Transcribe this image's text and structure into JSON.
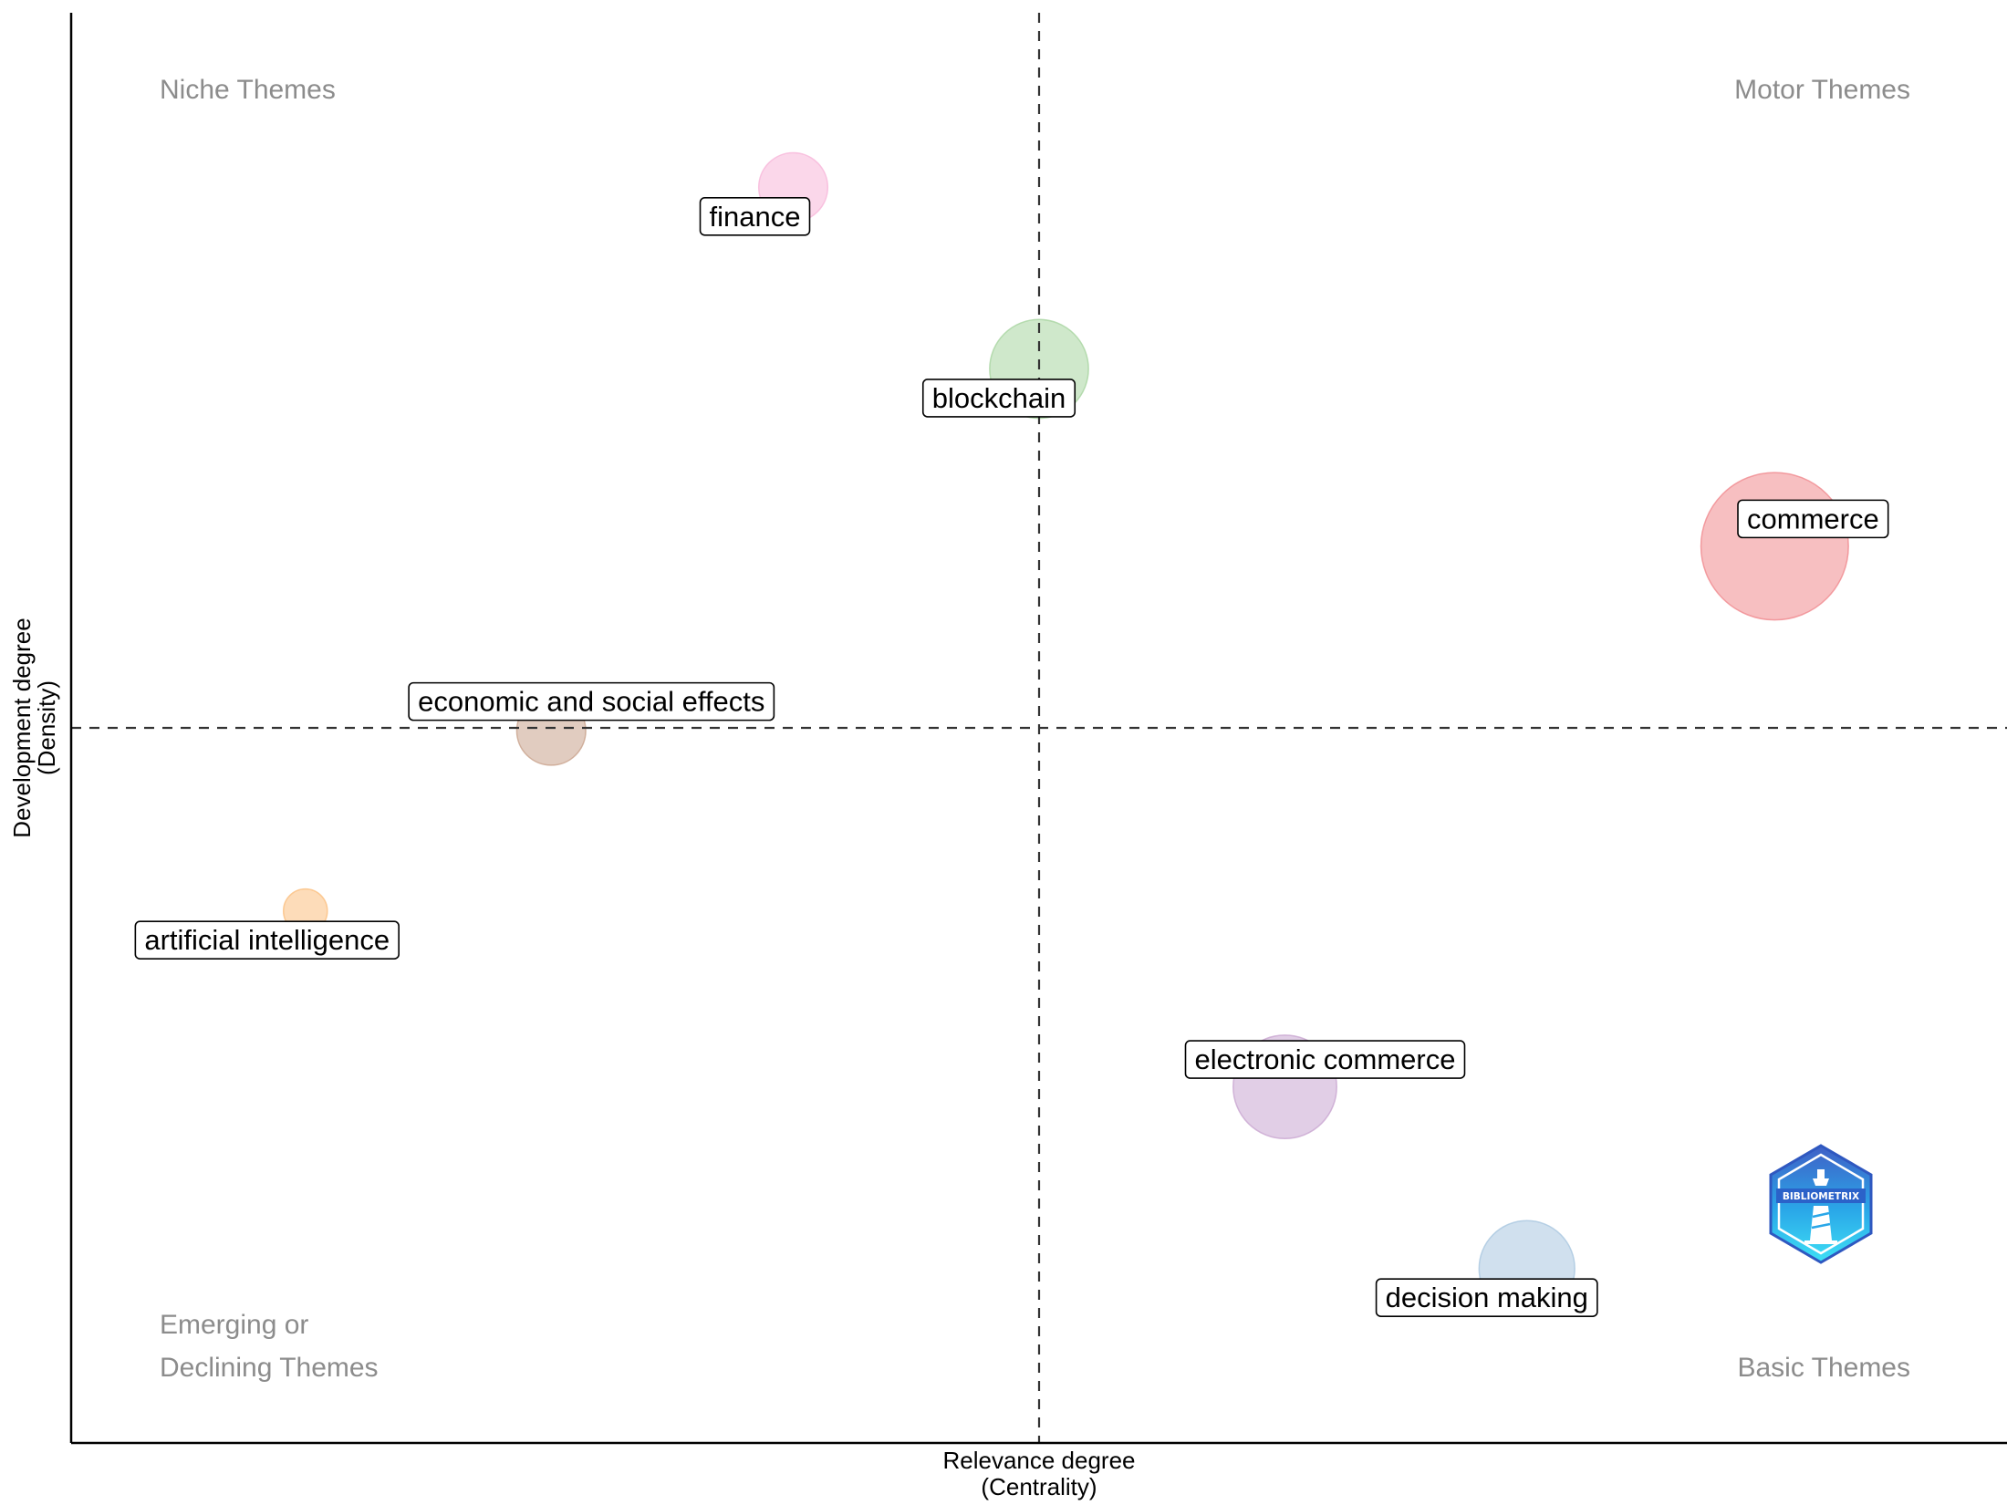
{
  "chart_data": {
    "type": "scatter",
    "title": "",
    "xlabel": "Relevance degree",
    "xlabel_sub": "(Centrality)",
    "ylabel": "Development degree",
    "ylabel_sub": "(Density)",
    "xlim": [
      0,
      1
    ],
    "ylim": [
      0,
      1
    ],
    "x_divider": 0.5,
    "y_divider": 0.5,
    "grid": false,
    "quadrants": {
      "top_left": "Niche Themes",
      "top_right": "Motor Themes",
      "bottom_left": [
        "Emerging or",
        "Declining Themes"
      ],
      "bottom_right": "Basic Themes"
    },
    "points": [
      {
        "label": "finance",
        "x": 0.373,
        "y": 0.878,
        "size": 0.3,
        "color": "#f7b6d9"
      },
      {
        "label": "blockchain",
        "x": 0.5,
        "y": 0.751,
        "size": 0.49,
        "color": "#a8d5a0"
      },
      {
        "label": "commerce",
        "x": 0.88,
        "y": 0.627,
        "size": 0.8,
        "color": "#f08a8e"
      },
      {
        "label": "economic and social effects",
        "x": 0.248,
        "y": 0.498,
        "size": 0.3,
        "color": "#c9a28c"
      },
      {
        "label": "artificial intelligence",
        "x": 0.121,
        "y": 0.372,
        "size": 0.14,
        "color": "#fbbf80"
      },
      {
        "label": "electronic commerce",
        "x": 0.627,
        "y": 0.249,
        "size": 0.52,
        "color": "#c9a6d1"
      },
      {
        "label": "decision making",
        "x": 0.752,
        "y": 0.122,
        "size": 0.47,
        "color": "#a9c7e0"
      }
    ]
  },
  "logo": {
    "text": "BIBLIOMETRIX",
    "colors": [
      "#3f5fc6",
      "#2aa7e8",
      "#3ee0f5"
    ]
  }
}
